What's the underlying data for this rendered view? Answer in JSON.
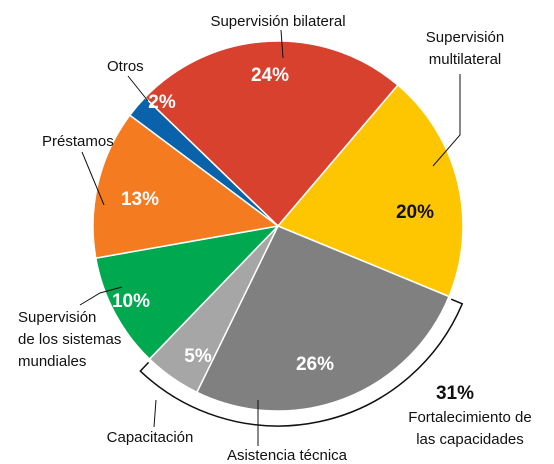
{
  "chart_data": {
    "type": "pie",
    "categories": [
      "Supervisión bilateral",
      "Supervisión multilateral",
      "Asistencia técnica",
      "Capacitación",
      "Supervisión de los sistemas mundiales",
      "Préstamos",
      "Otros"
    ],
    "values": [
      24,
      20,
      26,
      5,
      10,
      13,
      2
    ],
    "value_labels": [
      "24%",
      "20%",
      "26%",
      "5%",
      "10%",
      "13%",
      "2%"
    ],
    "colors": [
      "#d9412f",
      "#fdc600",
      "#808080",
      "#a6a6a6",
      "#00a84f",
      "#f47b20",
      "#0a62aa"
    ],
    "annotations": [
      "31%",
      "Fortalecimiento de las capacidades"
    ]
  }
}
